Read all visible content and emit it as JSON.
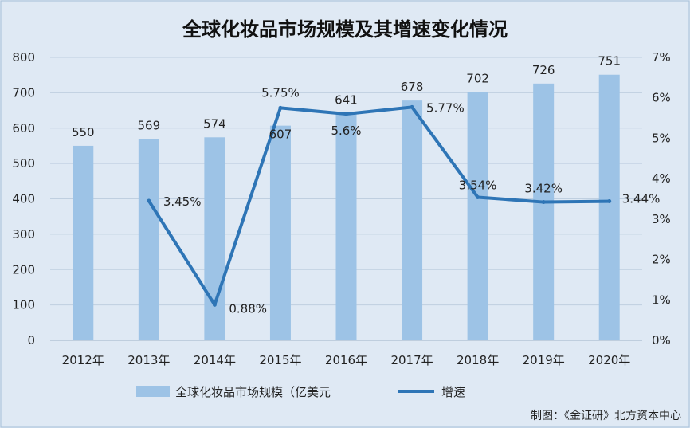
{
  "chart_data": {
    "type": "bar",
    "title": "全球化妆品市场规模及其增速变化情况",
    "categories": [
      "2012年",
      "2013年",
      "2014年",
      "2015年",
      "2016年",
      "2017年",
      "2018年",
      "2019年",
      "2020年"
    ],
    "series": [
      {
        "name": "全球化妆品市场规模（亿美元",
        "type": "bar",
        "axis": "left",
        "values": [
          550,
          569,
          574,
          607,
          641,
          678,
          702,
          726,
          751
        ],
        "labels": [
          "550",
          "569",
          "574",
          "607",
          "641",
          "678",
          "702",
          "726",
          "751"
        ],
        "color": "#9dc3e6"
      },
      {
        "name": "增速",
        "type": "line",
        "axis": "right",
        "values": [
          null,
          3.45,
          0.88,
          5.75,
          5.6,
          5.77,
          3.54,
          3.42,
          3.44
        ],
        "labels": [
          "",
          "3.45%",
          "0.88%",
          "5.75%",
          "5.6%",
          "5.77%",
          "3.54%",
          "3.42%",
          "3.44%"
        ],
        "color": "#2e75b6"
      }
    ],
    "y_left": {
      "min": 0,
      "max": 800,
      "step": 100,
      "ticks": [
        "0",
        "100",
        "200",
        "300",
        "400",
        "500",
        "600",
        "700",
        "800"
      ]
    },
    "y_right": {
      "min": 0,
      "max": 7,
      "step": 1,
      "ticks": [
        "0%",
        "1%",
        "2%",
        "3%",
        "4%",
        "5%",
        "6%",
        "7%"
      ]
    },
    "grid": true,
    "legend_position": "bottom"
  },
  "source": "制图：《金证研》北方资本中心"
}
